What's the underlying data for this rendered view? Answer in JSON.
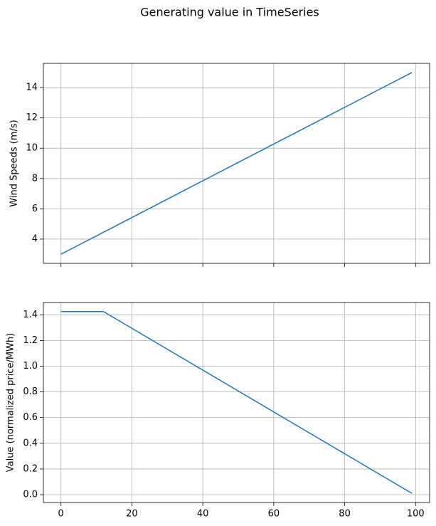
{
  "title": "Generating value in TimeSeries",
  "chart_data": [
    {
      "type": "line",
      "ylabel": "Wind Speeds (m/s)",
      "x": [
        0,
        99
      ],
      "values": [
        3,
        15
      ],
      "color": "#1f77b4",
      "xlim": [
        -4.95,
        103.95
      ],
      "ylim": [
        2.4,
        15.6
      ],
      "xticks": [
        0,
        20,
        40,
        60,
        80,
        100
      ],
      "yticks": [
        4,
        6,
        8,
        10,
        12,
        14
      ],
      "grid": true
    },
    {
      "type": "line",
      "ylabel": "Value (normalized price/MWh)",
      "x": [
        0,
        12,
        99
      ],
      "values": [
        1.425,
        1.425,
        0.01
      ],
      "color": "#1f77b4",
      "xlim": [
        -4.95,
        103.95
      ],
      "ylim": [
        -0.0608,
        1.4958
      ],
      "xticks": [
        0,
        20,
        40,
        60,
        80,
        100
      ],
      "yticks": [
        {
          "value": 0,
          "label": "0.0"
        },
        0.2,
        0.4,
        0.6,
        0.8,
        {
          "value": 1,
          "label": "1.0"
        },
        1.2,
        1.4
      ],
      "grid": true
    }
  ]
}
